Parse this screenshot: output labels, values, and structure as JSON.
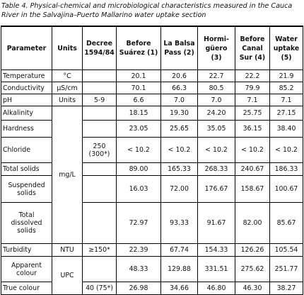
{
  "caption": "Table 4. Physical-chemical and microbiological characteristics measured in the Cauca River in the Salvajina–Puerto Mallarino water uptake section",
  "table": {
    "headers": [
      "Parameter",
      "Units",
      "Decree 1594/84",
      "Before Suárez (1)",
      "La Balsa Pass (2)",
      "Hormi-güero (3)",
      "Before Canal Sur (4)",
      "Water uptake (5)"
    ],
    "rows": [
      {
        "parameter": "Temperature",
        "units": "°C",
        "values": [
          "20.1",
          "20.6",
          "22.7",
          "22.2",
          "21.9"
        ]
      },
      {
        "parameter": "Conductivity",
        "units": "µS/cm",
        "values": [
          "70.1",
          "66.3",
          "80.5",
          "79.9",
          "85.2"
        ]
      },
      {
        "parameter": "pH",
        "units": "Units",
        "decree": "5-9",
        "values": [
          "6.6",
          "7.0",
          "7.0",
          "7.1",
          "7.1"
        ]
      },
      {
        "parameter": "Alkalinity",
        "units": "mg/L",
        "values": [
          "18.15",
          "19.30",
          "24.20",
          "25.75",
          "27.15"
        ]
      },
      {
        "parameter": "Hardness",
        "values": [
          "23.05",
          "25.65",
          "35.05",
          "36.15",
          "38.40"
        ]
      },
      {
        "parameter": "Chloride",
        "decree": "250 (300*)",
        "values": [
          "< 10.2",
          "< 10.2",
          "< 10.2",
          "< 10.2",
          "< 10.2"
        ]
      },
      {
        "parameter": "Total solids",
        "values": [
          "89.00",
          "165.33",
          "268.33",
          "240.67",
          "186.33"
        ]
      },
      {
        "parameter": "Suspended solids",
        "values": [
          "16.03",
          "72.00",
          "176.67",
          "158.67",
          "100.67"
        ]
      },
      {
        "parameter": "Total dissolved solids",
        "values": [
          "72.97",
          "93.33",
          "91.67",
          "82.00",
          "85.67"
        ]
      },
      {
        "parameter": "Turbidity",
        "units": "NTU",
        "decree": "≥150*",
        "values": [
          "22.39",
          "67.74",
          "154.33",
          "126.26",
          "105.54"
        ]
      },
      {
        "parameter": "Apparent colour",
        "units": "UPC",
        "values": [
          "48.33",
          "129.88",
          "331.51",
          "275.62",
          "251.77"
        ]
      },
      {
        "parameter": "True colour",
        "decree": "40 (75*)",
        "values": [
          "26.98",
          "34.66",
          "46.80",
          "46.30",
          "38.27"
        ]
      }
    ]
  }
}
